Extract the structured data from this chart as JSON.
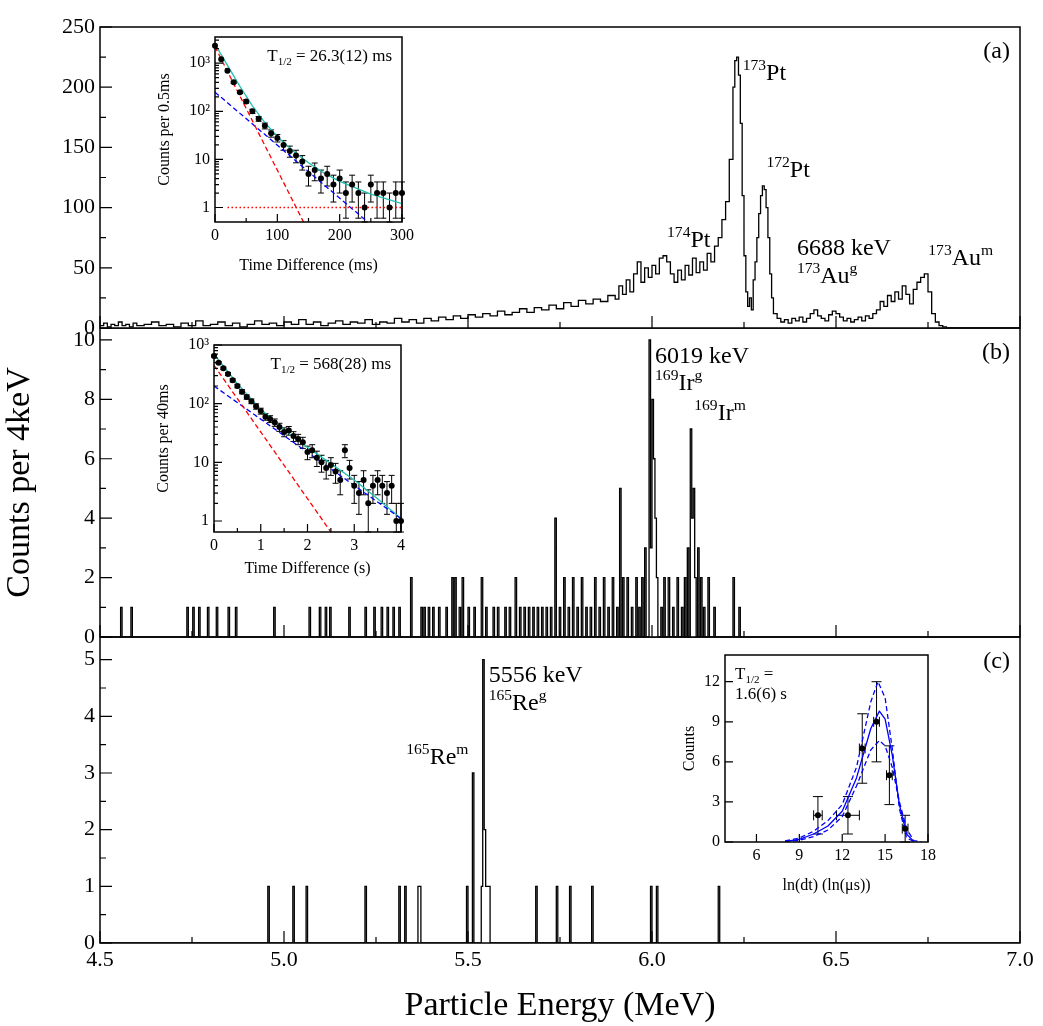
{
  "chart_data": [
    {
      "type": "step",
      "x": [
        4.5,
        4.51,
        4.52,
        4.53,
        4.54,
        4.55,
        4.56,
        4.57,
        4.58,
        4.59,
        4.6,
        4.62,
        4.64,
        4.66,
        4.68,
        4.7,
        4.72,
        4.74,
        4.76,
        4.78,
        4.8,
        4.82,
        4.84,
        4.86,
        4.88,
        4.9,
        4.92,
        4.94,
        4.96,
        4.98,
        5.0,
        5.02,
        5.04,
        5.06,
        5.08,
        5.1,
        5.12,
        5.14,
        5.16,
        5.18,
        5.2,
        5.22,
        5.24,
        5.26,
        5.28,
        5.3,
        5.32,
        5.34,
        5.36,
        5.38,
        5.4,
        5.42,
        5.44,
        5.46,
        5.48,
        5.5,
        5.52,
        5.54,
        5.56,
        5.58,
        5.6,
        5.62,
        5.64,
        5.66,
        5.68,
        5.7,
        5.72,
        5.74,
        5.76,
        5.78,
        5.8,
        5.82,
        5.84,
        5.86,
        5.88,
        5.9,
        5.91,
        5.92,
        5.93,
        5.94,
        5.95,
        5.96,
        5.97,
        5.98,
        5.99,
        6.0,
        6.01,
        6.02,
        6.03,
        6.04,
        6.05,
        6.06,
        6.07,
        6.08,
        6.09,
        6.1,
        6.11,
        6.12,
        6.13,
        6.14,
        6.15,
        6.16,
        6.17,
        6.18,
        6.19,
        6.2,
        6.21,
        6.22,
        6.225,
        6.23,
        6.235,
        6.24,
        6.245,
        6.25,
        6.255,
        6.26,
        6.265,
        6.27,
        6.275,
        6.28,
        6.285,
        6.29,
        6.295,
        6.3,
        6.305,
        6.31,
        6.315,
        6.32,
        6.325,
        6.33,
        6.34,
        6.35,
        6.36,
        6.37,
        6.38,
        6.39,
        6.4,
        6.41,
        6.42,
        6.43,
        6.44,
        6.45,
        6.46,
        6.47,
        6.48,
        6.49,
        6.5,
        6.51,
        6.52,
        6.53,
        6.54,
        6.55,
        6.56,
        6.57,
        6.58,
        6.59,
        6.6,
        6.61,
        6.62,
        6.63,
        6.64,
        6.65,
        6.66,
        6.67,
        6.68,
        6.69,
        6.7,
        6.71,
        6.72,
        6.73,
        6.74,
        6.75,
        6.76,
        6.77,
        6.78,
        6.79,
        6.8,
        7.0
      ],
      "values": [
        2,
        4,
        1,
        3,
        2,
        5,
        2,
        3,
        1,
        4,
        2,
        3,
        5,
        2,
        3,
        1,
        4,
        2,
        6,
        2,
        3,
        5,
        2,
        4,
        1,
        3,
        6,
        3,
        4,
        2,
        5,
        3,
        7,
        3,
        5,
        2,
        4,
        6,
        3,
        5,
        4,
        7,
        3,
        5,
        4,
        8,
        5,
        7,
        4,
        8,
        6,
        9,
        7,
        10,
        8,
        11,
        9,
        12,
        10,
        14,
        11,
        13,
        16,
        13,
        17,
        15,
        19,
        16,
        21,
        18,
        23,
        20,
        24,
        22,
        27,
        24,
        35,
        28,
        40,
        30,
        45,
        55,
        38,
        50,
        42,
        52,
        45,
        58,
        60,
        55,
        45,
        38,
        48,
        40,
        52,
        44,
        58,
        46,
        55,
        48,
        62,
        55,
        68,
        75,
        90,
        105,
        140,
        200,
        222,
        225,
        210,
        170,
        110,
        60,
        30,
        18,
        25,
        15,
        40,
        55,
        75,
        95,
        110,
        118,
        115,
        100,
        75,
        45,
        25,
        12,
        8,
        5,
        7,
        4,
        8,
        6,
        9,
        5,
        8,
        12,
        15,
        10,
        8,
        6,
        11,
        14,
        12,
        9,
        6,
        8,
        5,
        7,
        9,
        6,
        10,
        8,
        12,
        15,
        22,
        18,
        27,
        22,
        30,
        24,
        35,
        28,
        20,
        32,
        38,
        42,
        45,
        30,
        12,
        5,
        2,
        1,
        0,
        0
      ],
      "color": "#000000",
      "xlim": [
        4.5,
        7.0
      ],
      "xticks": [
        4.5,
        {
          "value": 4.75,
          "label": null
        },
        5,
        {
          "value": 5.25,
          "label": null
        },
        5.5,
        {
          "value": 5.75,
          "label": null
        },
        6,
        {
          "value": 6.25,
          "label": null
        },
        6.5,
        {
          "value": 6.75,
          "label": null
        },
        7
      ],
      "ylim": [
        0,
        250
      ],
      "yticks": [
        0,
        {
          "value": 25,
          "label": null
        },
        50,
        {
          "value": 75,
          "label": null
        },
        100,
        {
          "value": 125,
          "label": null
        },
        150,
        {
          "value": 175,
          "label": null
        },
        200,
        {
          "value": 225,
          "label": null
        },
        250
      ],
      "tick_labels": "y",
      "annotations": [
        "(a)",
        {
          "text": "$^{174}$Pt",
          "x": 6.03,
          "y": 60
        },
        {
          "text": "$^{173}$Pt",
          "x": 6.23,
          "y": 225
        },
        {
          "text": "$^{172}$Pt",
          "x": 6.3,
          "y": 118
        },
        {
          "text": "6688 keV\n$^{173}$Au$^{g}$",
          "x": 6.66,
          "y": 30
        },
        {
          "text": "$^{173}$Au$^{m}$",
          "x": 6.74,
          "y": 45
        }
      ]
    },
    {
      "type": "scatter",
      "xlabel": "Time Difference (ms)",
      "ylabel": "Counts per 0.5ms",
      "log": "y",
      "xlim": [
        0,
        300
      ],
      "xticks": [
        0,
        {
          "value": 50,
          "label": null
        },
        100,
        {
          "value": 150,
          "label": null
        },
        200,
        {
          "value": 250,
          "label": null
        },
        300
      ],
      "ylim": [
        0.5,
        3500
      ],
      "yticks": [
        1,
        {
          "value": 2,
          "label": null
        },
        {
          "value": 3,
          "label": null
        },
        {
          "value": 4,
          "label": null
        },
        {
          "value": 5,
          "label": null
        },
        {
          "value": 6,
          "label": null
        },
        {
          "value": 7,
          "label": null
        },
        {
          "value": 8,
          "label": null
        },
        {
          "value": 9,
          "label": null
        },
        10,
        {
          "value": 20,
          "label": null
        },
        {
          "value": 30,
          "label": null
        },
        {
          "value": 40,
          "label": null
        },
        {
          "value": 50,
          "label": null
        },
        {
          "value": 60,
          "label": null
        },
        {
          "value": 70,
          "label": null
        },
        {
          "value": 80,
          "label": null
        },
        {
          "value": 90,
          "label": null
        },
        {
          "value": 100,
          "label": "10²"
        },
        {
          "value": 200,
          "label": null
        },
        {
          "value": 300,
          "label": null
        },
        {
          "value": 400,
          "label": null
        },
        {
          "value": 500,
          "label": null
        },
        {
          "value": 600,
          "label": null
        },
        {
          "value": 700,
          "label": null
        },
        {
          "value": 800,
          "label": null
        },
        {
          "value": 900,
          "label": null
        },
        {
          "value": 1000,
          "label": "10³"
        },
        {
          "value": 2000,
          "label": null
        },
        {
          "value": 3000,
          "label": null
        }
      ],
      "annotations": [
        "T$_{1/2}$ = 26.3(12) ms"
      ],
      "series": [
        {
          "type": "scatter",
          "marker": "circle",
          "color": "#000000",
          "x": [
            0,
            10,
            20,
            30,
            40,
            50,
            60,
            70,
            80,
            90,
            100,
            110,
            120,
            130,
            140,
            150,
            160,
            170,
            180,
            190,
            200,
            210,
            220,
            230,
            240,
            250,
            260,
            270,
            280,
            290,
            300
          ],
          "values": [
            2300,
            1200,
            700,
            400,
            250,
            160,
            100,
            70,
            50,
            35,
            28,
            20,
            15,
            12,
            9,
            5,
            6,
            4,
            5,
            3,
            4,
            2,
            3,
            2,
            1,
            3,
            2,
            2,
            1,
            2,
            2
          ],
          "errors": [
            null,
            null,
            null,
            20,
            16,
            13,
            10,
            8,
            7,
            6,
            5,
            4.5,
            3.9,
            3.5,
            3,
            2.2,
            2.4,
            2,
            2.2,
            1.7,
            2,
            1.4,
            1.7,
            1.4,
            [
              0.5,
              2
            ],
            1.7,
            1.4,
            1.4,
            [
              0.5,
              2
            ],
            1.4,
            1.4
          ]
        },
        {
          "type": "line",
          "color": "#ff0000",
          "line_style": "dashed",
          "x": [
            0,
            142
          ],
          "values": [
            2200,
            0.5
          ]
        },
        {
          "type": "line",
          "color": "#ff0000",
          "line_style": "dotted",
          "x": [
            20,
            300
          ],
          "values": [
            1,
            1
          ]
        },
        {
          "type": "line",
          "color": "#0000ff",
          "line_style": "dashed",
          "x": [
            0,
            245
          ],
          "values": [
            250,
            0.5
          ]
        },
        {
          "type": "line",
          "color": "#20c0b0",
          "line_style": "solid",
          "x": [
            0,
            20,
            40,
            60,
            80,
            100,
            125,
            150,
            175,
            200,
            250,
            300
          ],
          "values": [
            2500,
            900,
            330,
            130,
            58,
            30,
            15,
            8.5,
            5.2,
            3.5,
            1.9,
            1.2
          ]
        }
      ]
    },
    {
      "type": "step",
      "ylabel": "Counts per 4keV",
      "x": [
        4.5,
        4.556,
        4.56,
        4.584,
        4.588,
        4.736,
        4.74,
        4.752,
        4.756,
        4.768,
        4.772,
        4.792,
        4.796,
        4.816,
        4.82,
        4.848,
        4.852,
        4.868,
        4.872,
        4.972,
        4.976,
        5.068,
        5.072,
        5.096,
        5.1,
        5.112,
        5.116,
        5.124,
        5.128,
        5.176,
        5.18,
        5.22,
        5.224,
        5.244,
        5.248,
        5.264,
        5.268,
        5.28,
        5.284,
        5.296,
        5.3,
        5.312,
        5.316,
        5.344,
        5.348,
        5.372,
        5.376,
        5.38,
        5.384,
        5.392,
        5.396,
        5.404,
        5.408,
        5.42,
        5.424,
        5.44,
        5.444,
        5.456,
        5.46,
        5.464,
        5.468,
        5.476,
        5.48,
        5.484,
        5.488,
        5.5,
        5.504,
        5.516,
        5.52,
        5.536,
        5.54,
        5.548,
        5.552,
        5.568,
        5.572,
        5.58,
        5.584,
        5.6,
        5.604,
        5.612,
        5.616,
        5.628,
        5.632,
        5.64,
        5.644,
        5.652,
        5.656,
        5.664,
        5.668,
        5.676,
        5.68,
        5.688,
        5.692,
        5.7,
        5.704,
        5.712,
        5.716,
        5.724,
        5.728,
        5.736,
        5.74,
        5.748,
        5.752,
        5.76,
        5.764,
        5.772,
        5.776,
        5.784,
        5.788,
        5.796,
        5.8,
        5.808,
        5.812,
        5.82,
        5.824,
        5.832,
        5.836,
        5.844,
        5.848,
        5.856,
        5.86,
        5.868,
        5.872,
        5.88,
        5.884,
        5.892,
        5.896,
        5.904,
        5.908,
        5.912,
        5.916,
        5.92,
        5.924,
        5.932,
        5.936,
        5.944,
        5.948,
        5.956,
        5.96,
        5.964,
        5.968,
        5.972,
        5.976,
        5.98,
        5.984,
        5.992,
        5.996,
        6.0,
        6.004,
        6.008,
        6.012,
        6.016,
        6.024,
        6.028,
        6.032,
        6.036,
        6.044,
        6.048,
        6.056,
        6.06,
        6.068,
        6.072,
        6.08,
        6.084,
        6.088,
        6.092,
        6.096,
        6.1,
        6.104,
        6.108,
        6.112,
        6.116,
        6.12,
        6.124,
        6.128,
        6.132,
        6.136,
        6.14,
        6.144,
        6.152,
        6.156,
        6.168,
        6.172,
        6.22,
        6.224,
        6.236,
        6.24,
        7.0
      ],
      "values": [
        0,
        1,
        0,
        1,
        0,
        1,
        0,
        1,
        0,
        1,
        0,
        1,
        0,
        1,
        0,
        1,
        0,
        1,
        0,
        1,
        0,
        1,
        0,
        1,
        0,
        1,
        0,
        1,
        0,
        1,
        0,
        1,
        0,
        1,
        0,
        1,
        0,
        1,
        0,
        1,
        0,
        1,
        0,
        2,
        0,
        1,
        0,
        1,
        0,
        1,
        0,
        1,
        0,
        1,
        0,
        1,
        0,
        2,
        0,
        2,
        0,
        1,
        0,
        2,
        0,
        1,
        0,
        1,
        0,
        2,
        0,
        1,
        0,
        1,
        0,
        1,
        0,
        1,
        0,
        1,
        0,
        2,
        0,
        1,
        0,
        1,
        0,
        1,
        0,
        1,
        0,
        1,
        0,
        1,
        0,
        1,
        0,
        1,
        0,
        4,
        0,
        1,
        0,
        2,
        0,
        1,
        0,
        2,
        0,
        1,
        0,
        2,
        0,
        1,
        0,
        1,
        0,
        2,
        0,
        1,
        0,
        2,
        0,
        1,
        0,
        2,
        0,
        1,
        0,
        5,
        0,
        2,
        0,
        2,
        0,
        1,
        0,
        2,
        0,
        1,
        0,
        2,
        0,
        3,
        0,
        10,
        3,
        8,
        6,
        4,
        2,
        0,
        1,
        0,
        2,
        0,
        2,
        0,
        1,
        0,
        2,
        0,
        1,
        0,
        2,
        0,
        3,
        0,
        7,
        4,
        5,
        2,
        0,
        3,
        0,
        2,
        0,
        1,
        0,
        2,
        0,
        1,
        0,
        2,
        0,
        1,
        0,
        0
      ],
      "color": "#000000",
      "xlim": [
        4.5,
        7.0
      ],
      "xticks": [
        4.5,
        {
          "value": 4.75,
          "label": null
        },
        5,
        {
          "value": 5.25,
          "label": null
        },
        5.5,
        {
          "value": 5.75,
          "label": null
        },
        6,
        {
          "value": 6.25,
          "label": null
        },
        6.5,
        {
          "value": 6.75,
          "label": null
        },
        7
      ],
      "ylim": [
        0,
        10.4
      ],
      "yticks": [
        0,
        {
          "value": 1,
          "label": null
        },
        2,
        {
          "value": 3,
          "label": null
        },
        4,
        {
          "value": 5,
          "label": null
        },
        6,
        {
          "value": 7,
          "label": null
        },
        8,
        {
          "value": 9,
          "label": null
        },
        10
      ],
      "tick_labels": "y",
      "annotations": [
        "(b)",
        {
          "text": "6019 keV\n$^{169}$Ir$^{g}$",
          "x": 5.992,
          "y": 10
        },
        {
          "text": "$^{169}$Ir$^{m}$",
          "x": 6.104,
          "y": 7
        }
      ]
    },
    {
      "type": "scatter",
      "xlabel": "Time Difference (s)",
      "ylabel": "Counts per 40ms",
      "log": "y",
      "xlim": [
        0,
        4
      ],
      "xticks": [
        0,
        {
          "value": 0.5,
          "label": null
        },
        1,
        {
          "value": 1.5,
          "label": null
        },
        2,
        {
          "value": 2.5,
          "label": null
        },
        3,
        {
          "value": 3.5,
          "label": null
        },
        4
      ],
      "ylim": [
        0.65,
        1000
      ],
      "yticks": [
        1,
        {
          "value": 2,
          "label": null
        },
        {
          "value": 3,
          "label": null
        },
        {
          "value": 4,
          "label": null
        },
        {
          "value": 5,
          "label": null
        },
        {
          "value": 6,
          "label": null
        },
        {
          "value": 7,
          "label": null
        },
        {
          "value": 8,
          "label": null
        },
        {
          "value": 9,
          "label": null
        },
        10,
        {
          "value": 20,
          "label": null
        },
        {
          "value": 30,
          "label": null
        },
        {
          "value": 40,
          "label": null
        },
        {
          "value": 50,
          "label": null
        },
        {
          "value": 60,
          "label": null
        },
        {
          "value": 70,
          "label": null
        },
        {
          "value": 80,
          "label": null
        },
        {
          "value": 90,
          "label": null
        },
        {
          "value": 100,
          "label": "10²"
        },
        {
          "value": 200,
          "label": null
        },
        {
          "value": 300,
          "label": null
        },
        {
          "value": 400,
          "label": null
        },
        {
          "value": 500,
          "label": null
        },
        {
          "value": 600,
          "label": null
        },
        {
          "value": 700,
          "label": null
        },
        {
          "value": 800,
          "label": null
        },
        {
          "value": 900,
          "label": null
        },
        {
          "value": 1000,
          "label": "10³"
        }
      ],
      "annotations": [
        "T$_{1/2}$ = 568(28) ms"
      ],
      "series": [
        {
          "type": "scatter",
          "marker": "circle",
          "color": "#000000",
          "x": [
            0,
            0.1,
            0.2,
            0.3,
            0.4,
            0.5,
            0.6,
            0.7,
            0.8,
            0.9,
            1,
            1.1,
            1.2,
            1.3,
            1.4,
            1.5,
            1.6,
            1.7,
            1.8,
            1.9,
            2,
            2.1,
            2.2,
            2.3,
            2.4,
            2.5,
            2.6,
            2.7,
            2.8,
            2.9,
            3,
            3.1,
            3.2,
            3.3,
            3.4,
            3.5,
            3.6,
            3.7,
            3.8,
            3.9,
            4
          ],
          "values": [
            650,
            500,
            400,
            320,
            250,
            200,
            160,
            130,
            110,
            90,
            75,
            60,
            55,
            48,
            40,
            33,
            35,
            28,
            25,
            22,
            15,
            16,
            12,
            10,
            8,
            9,
            7,
            5,
            16,
            8,
            4,
            3,
            5,
            2,
            4,
            5,
            4,
            3,
            4,
            1,
            1
          ],
          "errors": [
            25,
            22,
            20,
            18,
            16,
            14,
            13,
            11,
            10,
            9.5,
            8.7,
            7.7,
            7.4,
            6.9,
            6.3,
            5.7,
            5.9,
            5.3,
            5,
            4.7,
            3.9,
            4,
            3.5,
            3.2,
            2.8,
            3,
            2.6,
            2.2,
            4,
            2.8,
            2,
            1.7,
            2.2,
            [
              0.65,
              3.4
            ],
            2,
            2.2,
            2,
            1.7,
            2,
            [
              0.65,
              2
            ],
            [
              0.65,
              2
            ]
          ]
        },
        {
          "type": "line",
          "color": "#ff0000",
          "line_style": "dashed",
          "x": [
            0,
            2.5
          ],
          "values": [
            450,
            0.65
          ]
        },
        {
          "type": "line",
          "color": "#0000ff",
          "line_style": "dashed",
          "x": [
            0,
            4
          ],
          "values": [
            200,
            1.1
          ]
        },
        {
          "type": "line",
          "color": "#20c0b0",
          "line_style": "solid",
          "x": [
            0,
            0.5,
            1,
            1.5,
            2,
            2.5,
            3,
            3.5,
            4
          ],
          "values": [
            700,
            220,
            80,
            36,
            18,
            9.5,
            5,
            2.4,
            1.1
          ]
        }
      ]
    },
    {
      "type": "step",
      "xlabel": "Particle Energy (MeV)",
      "x": [
        4.5,
        4.956,
        4.96,
        5.024,
        5.028,
        5.06,
        5.064,
        5.22,
        5.224,
        5.312,
        5.316,
        5.328,
        5.332,
        5.364,
        5.372,
        5.496,
        5.5,
        5.512,
        5.516,
        5.536,
        5.54,
        5.544,
        5.548,
        5.56,
        5.684,
        5.688,
        5.74,
        5.744,
        5.776,
        5.78,
        5.836,
        5.84,
        5.996,
        6.0,
        6.012,
        6.016,
        6.18,
        6.184,
        7.0
      ],
      "values": [
        0,
        1,
        0,
        1,
        0,
        1,
        0,
        1,
        0,
        1,
        0,
        1,
        0,
        1,
        0,
        1,
        0,
        3,
        0,
        1,
        5,
        2,
        1,
        0,
        1,
        0,
        1,
        0,
        1,
        0,
        1,
        0,
        1,
        0,
        1,
        0,
        1,
        0,
        0
      ],
      "color": "#000000",
      "xlim": [
        4.5,
        7.0
      ],
      "xticks": [
        4.5,
        {
          "value": 4.75,
          "label": null
        },
        {
          "value": 5,
          "label": "5.0"
        },
        {
          "value": 5.25,
          "label": null
        },
        5.5,
        {
          "value": 5.75,
          "label": null
        },
        {
          "value": 6,
          "label": "6.0"
        },
        {
          "value": 6.25,
          "label": null
        },
        6.5,
        {
          "value": 6.75,
          "label": null
        },
        {
          "value": 7,
          "label": "7.0"
        }
      ],
      "ylim": [
        0,
        5.4
      ],
      "yticks": [
        0,
        {
          "value": 0.5,
          "label": null
        },
        1,
        {
          "value": 1.5,
          "label": null
        },
        2,
        {
          "value": 2.5,
          "label": null
        },
        3,
        {
          "value": 3.5,
          "label": null
        },
        4,
        {
          "value": 4.5,
          "label": null
        },
        5
      ],
      "annotations": [
        "(c)",
        {
          "text": "5556 keV\n$^{165}$Re$^{g}$",
          "x": 5.54,
          "y": 5
        },
        {
          "text": "$^{165}$Re$^{m}$",
          "x": 5.512,
          "y": 3
        }
      ]
    },
    {
      "type": "scatter",
      "xlabel": "ln(dt) (ln(μs))",
      "ylabel": "Counts",
      "xlim": [
        3.8,
        18
      ],
      "xticks": [
        6,
        9,
        12,
        15,
        18
      ],
      "ylim": [
        0,
        14
      ],
      "yticks": [
        0,
        3,
        6,
        9,
        12
      ],
      "annotations": [
        "T$_{1/2}$ =\n1.6(6) s"
      ],
      "series": [
        {
          "type": "scatter",
          "marker": "circle",
          "color": "#000000",
          "x": [
            10.3,
            12.4,
            13.4,
            14.4,
            15.3,
            16.4
          ],
          "values": [
            2,
            2,
            7,
            9,
            5,
            1
          ],
          "errors": [
            1.4,
            1.4,
            2.6,
            3,
            2.2,
            1
          ],
          "xerrors": [
            0.3,
            0.8,
            0.2,
            0.2,
            0.2,
            0.2
          ]
        },
        {
          "type": "line",
          "color": "#0000ff",
          "line_style": "solid",
          "x": [
            8,
            9,
            10,
            11,
            12,
            13,
            14,
            14.6,
            15,
            15.5,
            16,
            16.5,
            17
          ],
          "values": [
            0.05,
            0.2,
            0.6,
            1.2,
            2.3,
            4.8,
            8.5,
            9.8,
            9.2,
            6.5,
            2.8,
            0.6,
            0.05
          ]
        },
        {
          "type": "line",
          "color": "#0000ff",
          "line_style": "dashed",
          "x": [
            8,
            9,
            10,
            11,
            12,
            13,
            14,
            14.5,
            15,
            15.5,
            16,
            16.5,
            17
          ],
          "values": [
            0.08,
            0.3,
            0.8,
            1.6,
            2.8,
            5.6,
            10.5,
            12,
            10.8,
            7,
            2.5,
            0.3,
            0.05
          ]
        },
        {
          "type": "line",
          "color": "#0000ff",
          "line_style": "dashed",
          "x": [
            8,
            9,
            10,
            11,
            12,
            13,
            14,
            14.6,
            15,
            15.5,
            16,
            16.5,
            17,
            17.5
          ],
          "values": [
            0.03,
            0.12,
            0.4,
            0.9,
            1.9,
            4.2,
            6.9,
            7.6,
            7.2,
            5.6,
            3,
            1,
            0.1,
            0.02
          ]
        }
      ]
    }
  ]
}
